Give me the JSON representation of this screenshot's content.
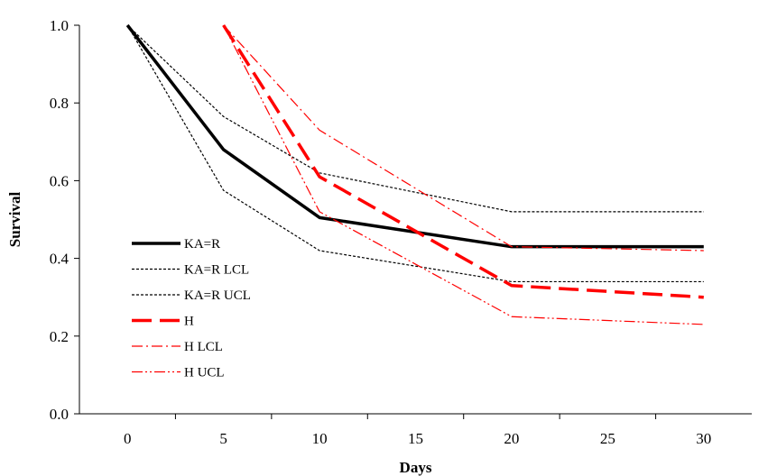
{
  "chart_data": {
    "type": "line",
    "title": "",
    "xlabel": "Days",
    "ylabel": "Survival",
    "xlim": [
      -2.5,
      32.5
    ],
    "ylim": [
      0,
      1.0
    ],
    "x_ticks": [
      0,
      5,
      10,
      15,
      20,
      25,
      30
    ],
    "y_ticks": [
      "0.0",
      "0.2",
      "0.4",
      "0.6",
      "0.8",
      "1.0"
    ],
    "grid": false,
    "legend_position": "left",
    "series": [
      {
        "name": "KA=R",
        "color": "#000000",
        "style": "solid-thick",
        "x": [
          0,
          5,
          10,
          20,
          30
        ],
        "values": [
          1.0,
          0.68,
          0.505,
          0.43,
          0.43
        ]
      },
      {
        "name": "KA=R LCL",
        "color": "#000000",
        "style": "dotted",
        "x": [
          0,
          5,
          10,
          20,
          30
        ],
        "values": [
          1.0,
          0.765,
          0.62,
          0.52,
          0.52
        ]
      },
      {
        "name": "KA=R UCL",
        "color": "#000000",
        "style": "dotted",
        "x": [
          0,
          5,
          10,
          20,
          30
        ],
        "values": [
          1.0,
          0.575,
          0.42,
          0.34,
          0.34
        ]
      },
      {
        "name": "H",
        "color": "#ff0000",
        "style": "dashed-thick",
        "x": [
          5,
          10,
          20,
          30
        ],
        "values": [
          1.0,
          0.61,
          0.33,
          0.3
        ]
      },
      {
        "name": "H LCL",
        "color": "#ff0000",
        "style": "dash-dot",
        "x": [
          5,
          10,
          20,
          30
        ],
        "values": [
          1.0,
          0.73,
          0.43,
          0.42
        ]
      },
      {
        "name": "H UCL",
        "color": "#ff0000",
        "style": "dash-dot-dot",
        "x": [
          5,
          10,
          20,
          30
        ],
        "values": [
          1.0,
          0.52,
          0.25,
          0.23
        ]
      }
    ]
  }
}
